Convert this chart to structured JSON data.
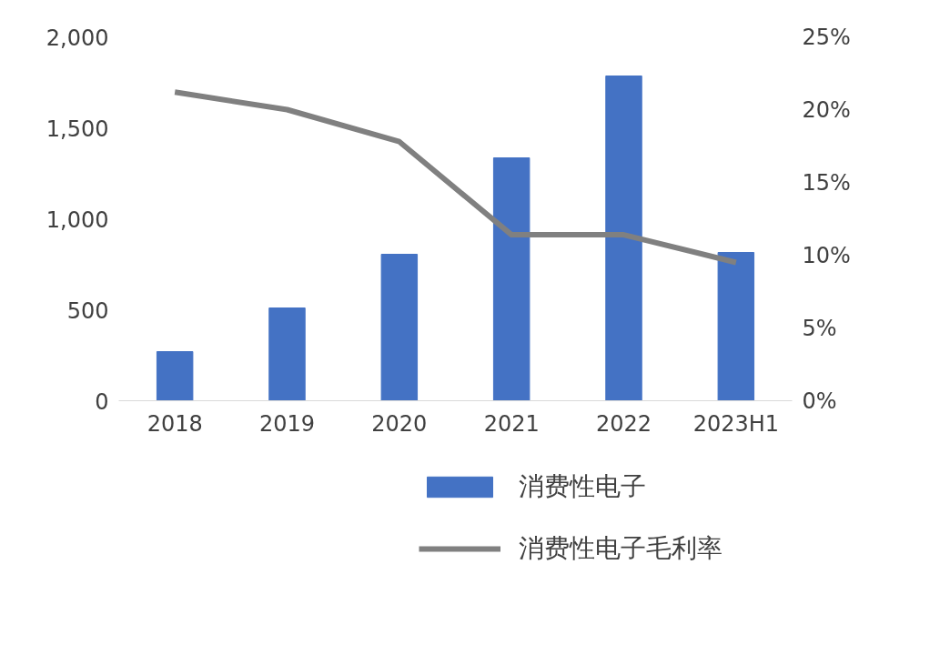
{
  "chart_data": {
    "type": "bar",
    "categories": [
      "2018",
      "2019",
      "2020",
      "2021",
      "2022",
      "2023H1"
    ],
    "series": [
      {
        "name": "消费性电子",
        "color": "#4472c4",
        "values": [
          270,
          510,
          805,
          1335,
          1785,
          815
        ]
      },
      {
        "name": "消费性电子毛利率",
        "type": "line",
        "axis": "y2",
        "color": "#808080",
        "values": [
          21.2,
          20.0,
          17.8,
          11.4,
          11.4,
          9.5
        ]
      }
    ],
    "ylim": [
      0,
      2000
    ],
    "yticks": [
      {
        "value": 0,
        "label": "0"
      },
      {
        "value": 500,
        "label": "500"
      },
      {
        "value": 1000,
        "label": "1,000"
      },
      {
        "value": 1500,
        "label": "1,500"
      },
      {
        "value": 2000,
        "label": "2,000"
      }
    ],
    "y2lim": [
      0,
      25
    ],
    "y2ticks": [
      {
        "value": 0,
        "label": "0%"
      },
      {
        "value": 5,
        "label": "5%"
      },
      {
        "value": 10,
        "label": "10%"
      },
      {
        "value": 15,
        "label": "15%"
      },
      {
        "value": 20,
        "label": "20%"
      },
      {
        "value": 25,
        "label": "25%"
      }
    ],
    "legend": "bottom",
    "grid": false,
    "marker": "none",
    "line_style": "solid"
  }
}
